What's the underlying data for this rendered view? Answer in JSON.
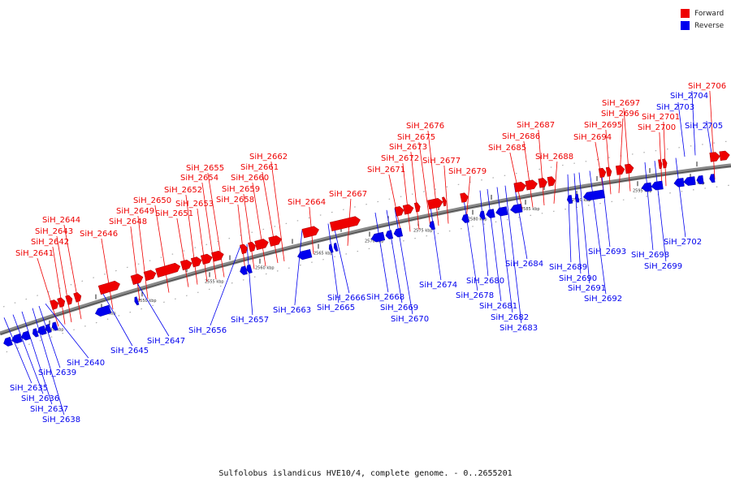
{
  "legend": {
    "forward_label": "Forward",
    "reverse_label": "Reverse",
    "forward_color": "#ee0000",
    "reverse_color": "#0000ee"
  },
  "caption": "Sulfolobus islandicus HVE10/4, complete genome. - 0..2655201",
  "backbone_color": "#888888",
  "scale_labels": [
    "2540 kbp",
    "2545 kbp",
    "2550 kbp",
    "2555 kbp",
    "2560 kbp",
    "2565 kbp",
    "2570 kbp",
    "2575 kbp",
    "2580 kbp",
    "2585 kbp",
    "2590 kbp",
    "2595 kbp",
    "2600 kbp"
  ],
  "genes": {
    "forward": [
      "SiH_2641",
      "SiH_2642",
      "SiH_2643",
      "SiH_2644",
      "SiH_2646",
      "SiH_2648",
      "SiH_2649",
      "SiH_2650",
      "SiH_2651",
      "SiH_2652",
      "SiH_2653",
      "SiH_2654",
      "SiH_2655",
      "SiH_2658",
      "SiH_2659",
      "SiH_2660",
      "SiH_2661",
      "SiH_2662",
      "SiH_2664",
      "SiH_2667",
      "SiH_2671",
      "SiH_2672",
      "SiH_2673",
      "SiH_2675",
      "SiH_2676",
      "SiH_2677",
      "SiH_2679",
      "SiH_2685",
      "SiH_2686",
      "SiH_2687",
      "SiH_2688",
      "SiH_2694",
      "SiH_2695",
      "SiH_2696",
      "SiH_2697",
      "SiH_2700",
      "SiH_2701",
      "SiH_2706"
    ],
    "reverse": [
      "SiH_2635",
      "SiH_2636",
      "SiH_2637",
      "SiH_2638",
      "SiH_2639",
      "SiH_2640",
      "SiH_2645",
      "SiH_2647",
      "SiH_2656",
      "SiH_2657",
      "SiH_2663",
      "SiH_2665",
      "SiH_2666",
      "SiH_2668",
      "SiH_2669",
      "SiH_2670",
      "SiH_2674",
      "SiH_2678",
      "SiH_2680",
      "SiH_2681",
      "SiH_2682",
      "SiH_2683",
      "SiH_2684",
      "SiH_2689",
      "SiH_2690",
      "SiH_2691",
      "SiH_2692",
      "SiH_2693",
      "SiH_2698",
      "SiH_2699",
      "SiH_2702",
      "SiH_2703",
      "SiH_2704",
      "SiH_2705"
    ]
  }
}
